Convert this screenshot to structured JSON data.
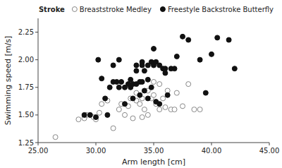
{
  "chart_data": {
    "type": "scatter",
    "xlabel": "Arm length [cm]",
    "ylabel": "Swimming speed [m/s]",
    "legend_title": "Stroke",
    "legend": "upper right",
    "xlim": [
      25.0,
      45.0
    ],
    "ylim": [
      1.25,
      2.375
    ],
    "xticks": [
      {
        "value": 25.0,
        "label": "25.00"
      },
      {
        "value": 30.0,
        "label": "30.00"
      },
      {
        "value": 35.0,
        "label": "35.00"
      },
      {
        "value": 40.0,
        "label": "40.00"
      },
      {
        "value": 45.0,
        "label": "45.00"
      }
    ],
    "yticks": [
      1.25,
      {
        "value": 1.5,
        "label": "1.50"
      },
      1.75,
      {
        "value": 2.0,
        "label": "2.00"
      },
      2.25
    ],
    "series": [
      {
        "name": "Breaststroke Medley",
        "color": "#888888",
        "marker": "open-circle",
        "x": [
          26.5,
          28.5,
          29.0,
          29.2,
          29.5,
          29.8,
          30.0,
          30.3,
          30.5,
          31.0,
          31.5,
          32.0,
          32.2,
          32.5,
          32.8,
          33.0,
          33.2,
          33.5,
          33.5,
          33.8,
          34.0,
          34.0,
          34.2,
          34.5,
          34.5,
          34.8,
          35.0,
          35.0,
          35.2,
          35.5,
          35.5,
          35.8,
          36.0,
          36.2,
          36.5,
          36.8,
          37.0,
          37.5,
          38.0,
          38.5,
          39.0
        ],
        "values": [
          1.3,
          1.46,
          1.47,
          1.5,
          1.5,
          1.48,
          1.46,
          1.52,
          1.6,
          1.63,
          1.38,
          1.55,
          1.6,
          1.5,
          1.58,
          1.65,
          1.47,
          1.63,
          1.7,
          1.6,
          1.48,
          1.65,
          1.55,
          1.5,
          1.72,
          1.65,
          1.68,
          1.8,
          1.6,
          1.55,
          1.78,
          1.65,
          1.57,
          1.72,
          1.55,
          1.55,
          1.7,
          1.58,
          1.78,
          1.55,
          1.55
        ]
      },
      {
        "name": "Freestyle Backstroke Butterfly",
        "color": "#111111",
        "marker": "circle",
        "x": [
          29.0,
          29.5,
          30.0,
          30.2,
          30.5,
          30.8,
          31.0,
          31.2,
          31.5,
          31.5,
          31.8,
          32.0,
          32.0,
          32.2,
          32.5,
          32.5,
          32.8,
          33.0,
          33.0,
          33.2,
          33.2,
          33.5,
          33.5,
          33.5,
          33.8,
          33.8,
          34.0,
          34.0,
          34.0,
          34.2,
          34.2,
          34.5,
          34.5,
          34.5,
          34.8,
          34.8,
          35.0,
          35.0,
          35.0,
          35.2,
          35.2,
          35.5,
          35.5,
          35.8,
          36.0,
          36.0,
          36.2,
          36.5,
          36.8,
          37.0,
          37.5,
          38.0,
          39.0,
          39.5,
          40.0,
          40.5,
          41.5,
          42.0
        ],
        "values": [
          1.5,
          1.5,
          1.48,
          2.0,
          1.83,
          1.65,
          1.5,
          1.75,
          1.95,
          1.8,
          1.8,
          1.75,
          2.0,
          1.8,
          1.75,
          1.6,
          1.78,
          1.82,
          1.75,
          1.78,
          1.65,
          1.78,
          1.9,
          1.95,
          1.8,
          1.68,
          1.95,
          1.98,
          1.8,
          1.9,
          1.72,
          1.95,
          1.82,
          1.65,
          1.98,
          1.75,
          1.97,
          1.95,
          2.1,
          1.98,
          1.62,
          1.95,
          1.6,
          1.92,
          1.92,
          1.88,
          1.68,
          1.92,
          1.92,
          2.03,
          2.21,
          2.18,
          2.0,
          1.7,
          2.05,
          2.2,
          2.18,
          1.92
        ]
      }
    ]
  }
}
